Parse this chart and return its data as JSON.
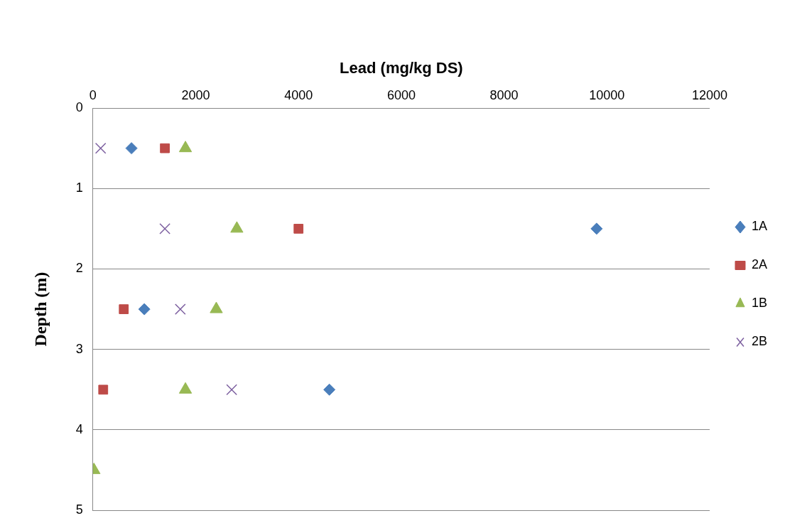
{
  "chart_data": {
    "type": "scatter",
    "xlabel": "Lead (mg/kg DS)",
    "ylabel": "Depth (m)",
    "xlim": [
      0,
      12000
    ],
    "xticks": [
      0,
      2000,
      4000,
      6000,
      8000,
      10000,
      12000
    ],
    "ylim": [
      5,
      0
    ],
    "yticks": [
      0,
      1,
      2,
      3,
      4,
      5
    ],
    "grid": "y",
    "legend": "right",
    "series": [
      {
        "name": "1A",
        "color": "#4a7ebb",
        "marker": "diamond",
        "x": [
          750,
          9800,
          1000,
          4600
        ],
        "values": [
          0.5,
          1.5,
          2.5,
          3.5
        ]
      },
      {
        "name": "2A",
        "color": "#be4b48",
        "marker": "square",
        "x": [
          1400,
          4000,
          600,
          200
        ],
        "values": [
          0.5,
          1.5,
          2.5,
          3.5
        ]
      },
      {
        "name": "1B",
        "color": "#98b954",
        "marker": "triangle",
        "x": [
          1800,
          2800,
          2400,
          1800,
          20
        ],
        "values": [
          0.5,
          1.5,
          2.5,
          3.5,
          4.5
        ]
      },
      {
        "name": "2B",
        "color": "#7d60a0",
        "marker": "cross",
        "x": [
          150,
          1400,
          1700,
          2700
        ],
        "values": [
          0.5,
          1.5,
          2.5,
          3.5
        ]
      }
    ]
  }
}
